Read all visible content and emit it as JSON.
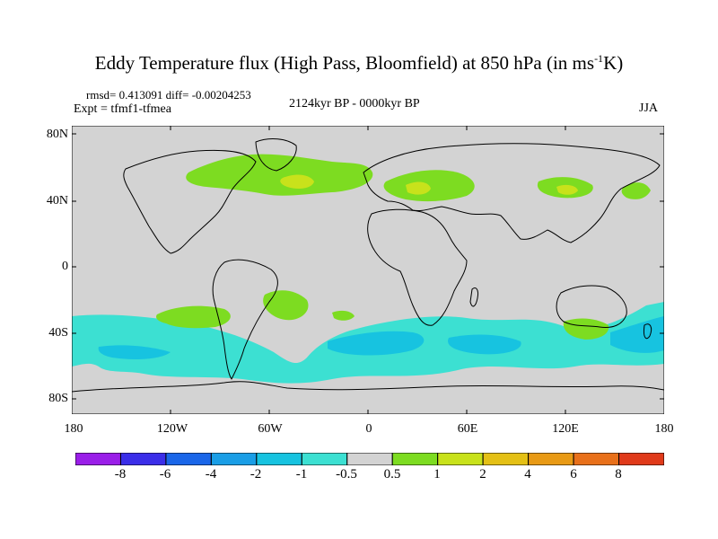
{
  "title": {
    "main": "Eddy Temperature flux (High Pass, Bloomfield) at 850 hPa (in ms",
    "sup": "-1",
    "tail": "K)"
  },
  "stats_line": "rmsd= 0.413091 diff= -0.00204253",
  "experiment": "Expt = tfmf1-tfmea",
  "period": "2124kyr BP - 0000kyr BP",
  "season": "JJA",
  "y_axis": {
    "ticks": [
      "80N",
      "40N",
      "0",
      "40S",
      "80S"
    ]
  },
  "x_axis": {
    "ticks": [
      "180",
      "120W",
      "60W",
      "0",
      "60E",
      "120E",
      "180"
    ]
  },
  "map": {
    "background_color": "#d3d3d3",
    "lon_range": [
      -180,
      180
    ],
    "lat_range": [
      -90,
      90
    ],
    "field_regions": [
      {
        "name": "north-atlantic-positive",
        "level": "0.5-1",
        "color": "#7ddc21"
      },
      {
        "name": "north-atlantic-core",
        "level": "1-2",
        "color": "#c8e21b"
      },
      {
        "name": "eurasia-positive",
        "level": "0.5-1",
        "color": "#7ddc21"
      },
      {
        "name": "eurasia-core",
        "level": "1-2",
        "color": "#c8e21b"
      },
      {
        "name": "north-pacific-positive",
        "level": "0.5-1",
        "color": "#7ddc21"
      },
      {
        "name": "south-pacific-positive",
        "level": "0.5-1",
        "color": "#7ddc21"
      },
      {
        "name": "south-atlantic-positive",
        "level": "0.5-1",
        "color": "#7ddc21"
      },
      {
        "name": "australia-positive",
        "level": "0.5-1",
        "color": "#7ddc21"
      },
      {
        "name": "southern-ocean-negative",
        "level": "-1 to -0.5",
        "color": "#3ce0d2"
      },
      {
        "name": "southern-ocean-core",
        "level": "-2 to -1",
        "color": "#17c3e0"
      }
    ]
  },
  "colorbar": {
    "colors": [
      "#9a1ee8",
      "#3b2ee8",
      "#1a66e8",
      "#1a9ee6",
      "#17c3e0",
      "#3ce0d2",
      "#d3d3d3",
      "#7ddc21",
      "#c8e21b",
      "#e4c015",
      "#e89a15",
      "#e8701a",
      "#e03a1a"
    ],
    "labels": [
      "-8",
      "-6",
      "-4",
      "-2",
      "-1",
      "-0.5",
      "0.5",
      "1",
      "2",
      "4",
      "6",
      "8"
    ]
  }
}
